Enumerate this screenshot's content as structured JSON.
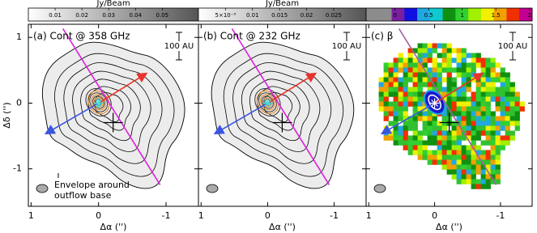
{
  "chart_data": [
    {
      "type": "contour",
      "title": "(a) Cont @ 358 GHz",
      "xlabel": "Δα ('')",
      "ylabel": "Δδ ('')",
      "xlim": [
        1.04,
        -1.48
      ],
      "ylim": [
        -1.57,
        1.2
      ],
      "xticks": [
        1,
        0,
        -1
      ],
      "yticks": [
        1,
        0,
        -1
      ],
      "scale_bar": "100 AU",
      "annotation": [
        "Envelope around",
        "outflow base"
      ],
      "colorbar": {
        "label": "Jy/Beam",
        "lim": [
          0,
          0.0635
        ],
        "ticks": [
          0.01,
          0.02,
          0.03,
          0.04,
          0.05
        ],
        "colors": [
          "#ffffff",
          "#555555"
        ]
      }
    },
    {
      "type": "contour",
      "title": "(b) Cont @ 232 GHz",
      "xlabel": "Δα ('')",
      "xlim": [
        1.04,
        -1.48
      ],
      "ylim": [
        -1.57,
        1.2
      ],
      "xticks": [
        1,
        0,
        -1
      ],
      "scale_bar": "100 AU",
      "colorbar": {
        "label": "Jy/Beam",
        "lim": [
          0,
          0.031
        ],
        "ticks": [
          {
            "value": 0.005,
            "label": "5×10⁻³"
          },
          0.01,
          0.015,
          0.02,
          0.025
        ],
        "colors": [
          "#ffffff",
          "#555555"
        ]
      }
    },
    {
      "type": "beta",
      "title": "(c) β",
      "xlabel": "Δα ('')",
      "xlim": [
        1.04,
        -1.48
      ],
      "ylim": [
        -1.57,
        1.2
      ],
      "xticks": [
        1,
        0,
        -1
      ],
      "scale_bar": "100 AU",
      "colorbar": {
        "lim": [
          -0.43,
          2.04
        ],
        "ticks": [
          0,
          0.5,
          1,
          1.5,
          2
        ],
        "colors": [
          "#8c8c8c",
          "#8c8c8c",
          "#7a1fa0",
          "#1010e0",
          "#20a8e0",
          "#10c8d0",
          "#109010",
          "#30d030",
          "#a0f000",
          "#f0f000",
          "#f0a000",
          "#f03000",
          "#c00090"
        ]
      }
    }
  ]
}
